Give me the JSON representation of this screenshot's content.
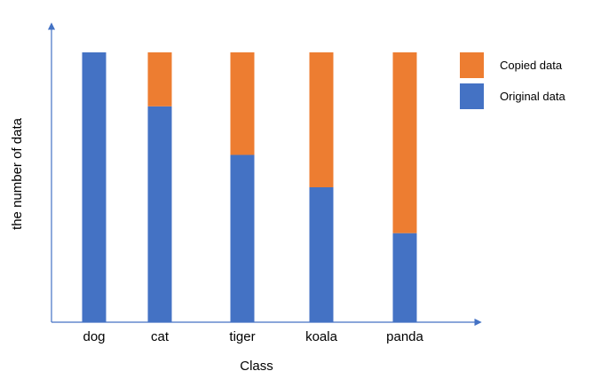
{
  "chart_data": {
    "type": "bar",
    "stacked": true,
    "xlabel": "Class",
    "ylabel": "the number of data",
    "categories": [
      "dog",
      "cat",
      "tiger",
      "koala",
      "panda"
    ],
    "series": [
      {
        "name": "Original data",
        "values": [
          100,
          80,
          62,
          50,
          33
        ],
        "color": "#4472C4"
      },
      {
        "name": "Copied data",
        "values": [
          0,
          20,
          38,
          50,
          67
        ],
        "color": "#ED7D31"
      }
    ],
    "ylim": [
      0,
      100
    ],
    "grid": false,
    "legend": {
      "placement": "top-right",
      "order": [
        "Copied data",
        "Original data"
      ]
    },
    "axis_color": "#4472C4"
  }
}
